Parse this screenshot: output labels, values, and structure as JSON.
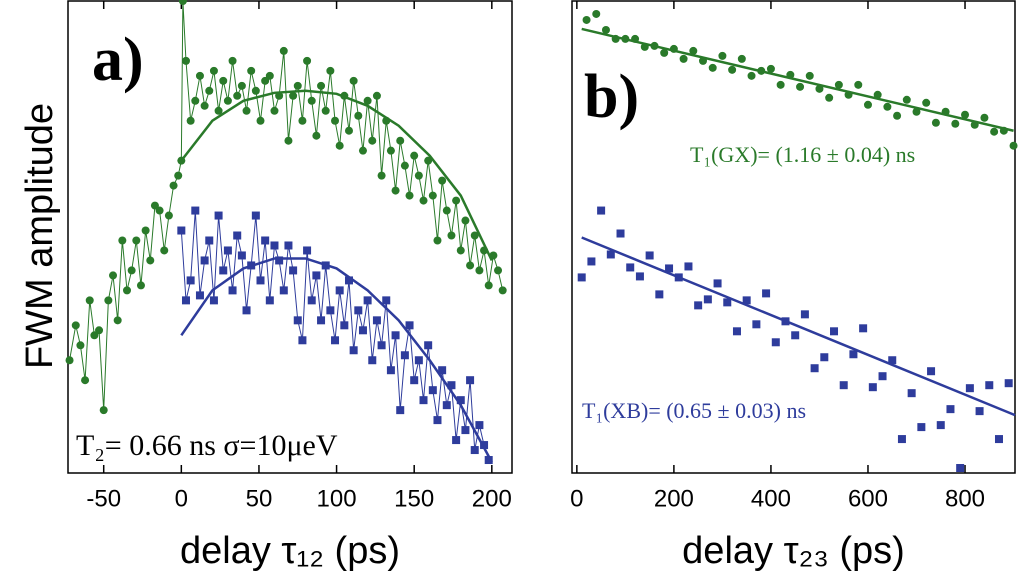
{
  "chart_data": [
    {
      "type": "scatter",
      "ylabel": "FWM amplitude",
      "xlabel": "delay τ₁₂  (ps)",
      "xlim": [
        -73,
        213
      ],
      "ylim": [
        0,
        473
      ],
      "xticks": [
        -50,
        0,
        50,
        100,
        150,
        200
      ],
      "annotations": [
        {
          "text": "a)",
          "color": "#000000"
        },
        {
          "text": "T₂= 0.66 ns  σ=10μeV",
          "color": "#000000"
        }
      ],
      "series": [
        {
          "color": "#2a7a2a",
          "marker": "circle",
          "style": "markers+line",
          "x": [
            -72,
            -68,
            -65,
            -62,
            -59,
            -56,
            -53,
            -50,
            -47,
            -44,
            -41,
            -38,
            -35,
            -32,
            -29,
            -26,
            -23,
            -20,
            -17,
            -14,
            -11,
            -8,
            -5,
            -2,
            0,
            1,
            3,
            6,
            9,
            12,
            15,
            18,
            21,
            24,
            27,
            30,
            33,
            36,
            39,
            42,
            45,
            48,
            51,
            54,
            57,
            60,
            63,
            66,
            69,
            72,
            75,
            78,
            81,
            84,
            87,
            90,
            93,
            96,
            99,
            102,
            105,
            108,
            111,
            114,
            117,
            120,
            123,
            126,
            129,
            132,
            135,
            138,
            141,
            144,
            147,
            150,
            153,
            156,
            159,
            162,
            165,
            168,
            171,
            174,
            177,
            180,
            183,
            186,
            189,
            192,
            195,
            198,
            201,
            204,
            207
          ],
          "values": [
            113,
            148,
            128,
            93,
            173,
            138,
            143,
            63,
            173,
            198,
            153,
            233,
            183,
            203,
            233,
            188,
            243,
            213,
            268,
            263,
            223,
            258,
            288,
            298,
            313,
            473,
            413,
            353,
            373,
            398,
            368,
            383,
            403,
            363,
            393,
            373,
            413,
            378,
            388,
            363,
            403,
            383,
            353,
            393,
            398,
            363,
            378,
            423,
            333,
            378,
            388,
            353,
            413,
            373,
            338,
            388,
            363,
            403,
            353,
            328,
            378,
            343,
            393,
            358,
            323,
            373,
            333,
            378,
            298,
            353,
            323,
            283,
            333,
            308,
            278,
            318,
            298,
            273,
            313,
            278,
            233,
            293,
            263,
            238,
            273,
            223,
            253,
            208,
            238,
            203,
            223,
            188,
            218,
            203,
            183
          ]
        },
        {
          "color": "#2e3c9c",
          "marker": "square",
          "style": "markers+line",
          "x": [
            0,
            3,
            6,
            9,
            12,
            15,
            18,
            21,
            24,
            27,
            30,
            33,
            36,
            39,
            42,
            45,
            48,
            51,
            54,
            57,
            60,
            63,
            66,
            69,
            72,
            75,
            78,
            81,
            84,
            87,
            90,
            93,
            96,
            99,
            102,
            105,
            108,
            111,
            114,
            117,
            120,
            123,
            126,
            129,
            132,
            135,
            138,
            141,
            144,
            147,
            150,
            153,
            156,
            159,
            162,
            165,
            168,
            171,
            174,
            177,
            180,
            183,
            186,
            189,
            192,
            195,
            198
          ],
          "values": [
            243,
            173,
            193,
            263,
            178,
            213,
            233,
            173,
            258,
            203,
            223,
            183,
            238,
            218,
            163,
            208,
            258,
            193,
            233,
            173,
            228,
            213,
            183,
            228,
            203,
            153,
            133,
            223,
            173,
            198,
            153,
            208,
            163,
            133,
            183,
            148,
            193,
            123,
            163,
            143,
            173,
            113,
            153,
            128,
            173,
            103,
            138,
            63,
            118,
            148,
            93,
            113,
            73,
            128,
            83,
            53,
            103,
            68,
            88,
            33,
            73,
            43,
            93,
            23,
            48,
            28,
            13
          ]
        },
        {
          "color": "#2a7a2a",
          "style": "line",
          "x": [
            0,
            20,
            40,
            60,
            80,
            100,
            120,
            140,
            160,
            180,
            200
          ],
          "values": [
            313,
            353,
            373,
            381,
            383,
            380,
            368,
            348,
            318,
            278,
            213
          ]
        },
        {
          "color": "#2e3c9c",
          "style": "line",
          "x": [
            0,
            20,
            40,
            60,
            80,
            100,
            120,
            140,
            160,
            180,
            200
          ],
          "values": [
            138,
            183,
            205,
            215,
            215,
            205,
            183,
            153,
            113,
            68,
            11
          ]
        }
      ]
    },
    {
      "type": "scatter",
      "xlabel": "delay τ₂₃    (ps)",
      "xlim": [
        -10,
        903
      ],
      "ylim": [
        0,
        473
      ],
      "xticks": [
        0,
        200,
        400,
        600,
        800
      ],
      "annotations": [
        {
          "text": "b)",
          "color": "#000000"
        },
        {
          "text": "T₁(GX)= (1.16 ± 0.04) ns",
          "color": "#2a7a2a"
        },
        {
          "text": "T₁(XB)= (0.65 ± 0.03) ns",
          "color": "#2e3c9c"
        }
      ],
      "series": [
        {
          "color": "#2a7a2a",
          "marker": "circle",
          "style": "markers",
          "x": [
            20,
            40,
            60,
            80,
            100,
            120,
            140,
            160,
            180,
            200,
            220,
            240,
            260,
            280,
            300,
            320,
            340,
            360,
            380,
            400,
            420,
            440,
            460,
            480,
            500,
            520,
            540,
            560,
            580,
            600,
            620,
            640,
            660,
            680,
            700,
            720,
            740,
            760,
            780,
            800,
            820,
            840,
            860,
            880,
            900
          ],
          "values": [
            454,
            460,
            444,
            435,
            435,
            435,
            427,
            428,
            421,
            425,
            415,
            423,
            413,
            406,
            418,
            404,
            415,
            398,
            403,
            405,
            389,
            399,
            387,
            398,
            385,
            376,
            389,
            379,
            389,
            369,
            379,
            367,
            358,
            374,
            362,
            371,
            351,
            362,
            350,
            359,
            349,
            356,
            342,
            343,
            328
          ]
        },
        {
          "color": "#2e3c9c",
          "marker": "square",
          "style": "markers",
          "x": [
            10,
            30,
            50,
            70,
            90,
            110,
            130,
            150,
            170,
            190,
            210,
            230,
            250,
            270,
            290,
            310,
            330,
            350,
            370,
            390,
            410,
            430,
            450,
            470,
            490,
            510,
            530,
            550,
            570,
            590,
            610,
            630,
            650,
            670,
            690,
            710,
            730,
            750,
            770,
            790,
            810,
            830,
            850,
            870,
            890
          ],
          "values": [
            196,
            212,
            263,
            219,
            240,
            206,
            197,
            218,
            179,
            205,
            196,
            207,
            168,
            174,
            190,
            171,
            142,
            173,
            149,
            180,
            131,
            152,
            138,
            159,
            105,
            116,
            142,
            88,
            119,
            145,
            86,
            97,
            113,
            34,
            80,
            46,
            102,
            48,
            64,
            5,
            85,
            62,
            88,
            34,
            90
          ]
        },
        {
          "color": "#2a7a2a",
          "style": "line",
          "x": [
            10,
            900
          ],
          "values": [
            445,
            343
          ]
        },
        {
          "color": "#2e3c9c",
          "style": "line",
          "x": [
            10,
            903
          ],
          "values": [
            236,
            58
          ]
        }
      ]
    }
  ]
}
